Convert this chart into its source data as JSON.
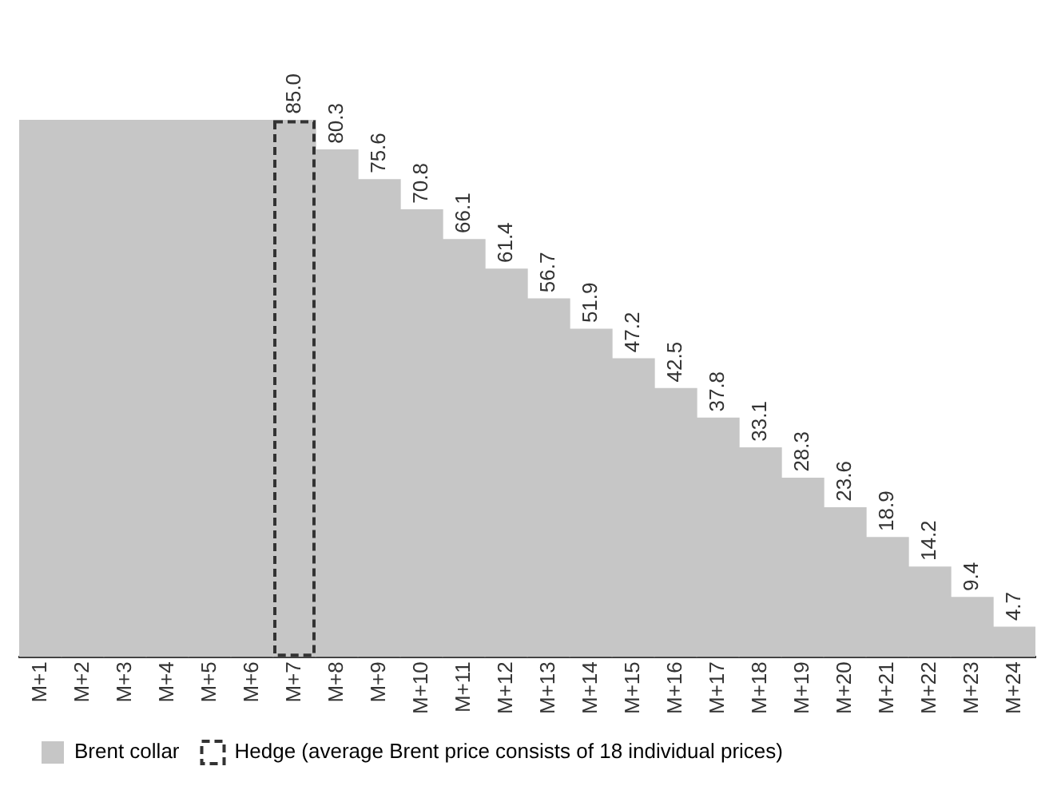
{
  "chart_data": {
    "type": "bar",
    "categories": [
      "M+1",
      "M+2",
      "M+3",
      "M+4",
      "M+5",
      "M+6",
      "M+7",
      "M+8",
      "M+9",
      "M+10",
      "M+11",
      "M+12",
      "M+13",
      "M+14",
      "M+15",
      "M+16",
      "M+17",
      "M+18",
      "M+19",
      "M+20",
      "M+21",
      "M+22",
      "M+23",
      "M+24"
    ],
    "series": [
      {
        "name": "Brent collar",
        "color": "#c6c6c6",
        "values": [
          85.0,
          85.0,
          85.0,
          85.0,
          85.0,
          85.0,
          85.0,
          80.3,
          75.6,
          70.8,
          66.1,
          61.4,
          56.7,
          51.9,
          47.2,
          42.5,
          37.8,
          33.1,
          28.3,
          23.6,
          18.9,
          14.2,
          9.4,
          4.7
        ],
        "value_labels": [
          null,
          null,
          null,
          null,
          null,
          null,
          "85.0",
          "80.3",
          "75.6",
          "70.8",
          "66.1",
          "61.4",
          "56.7",
          "51.9",
          "47.2",
          "42.5",
          "37.8",
          "33.1",
          "28.3",
          "23.6",
          "18.9",
          "14.2",
          "9.4",
          "4.7"
        ]
      },
      {
        "name": "Hedge (average Brent price consists of 18 individual prices)",
        "color": "#333333",
        "line_style": "dashed",
        "values": [
          null,
          null,
          null,
          null,
          null,
          null,
          85.0,
          null,
          null,
          null,
          null,
          null,
          null,
          null,
          null,
          null,
          null,
          null,
          null,
          null,
          null,
          null,
          null,
          null
        ]
      }
    ],
    "legend": "bottom left",
    "grid": false,
    "tick_labels": "x"
  }
}
